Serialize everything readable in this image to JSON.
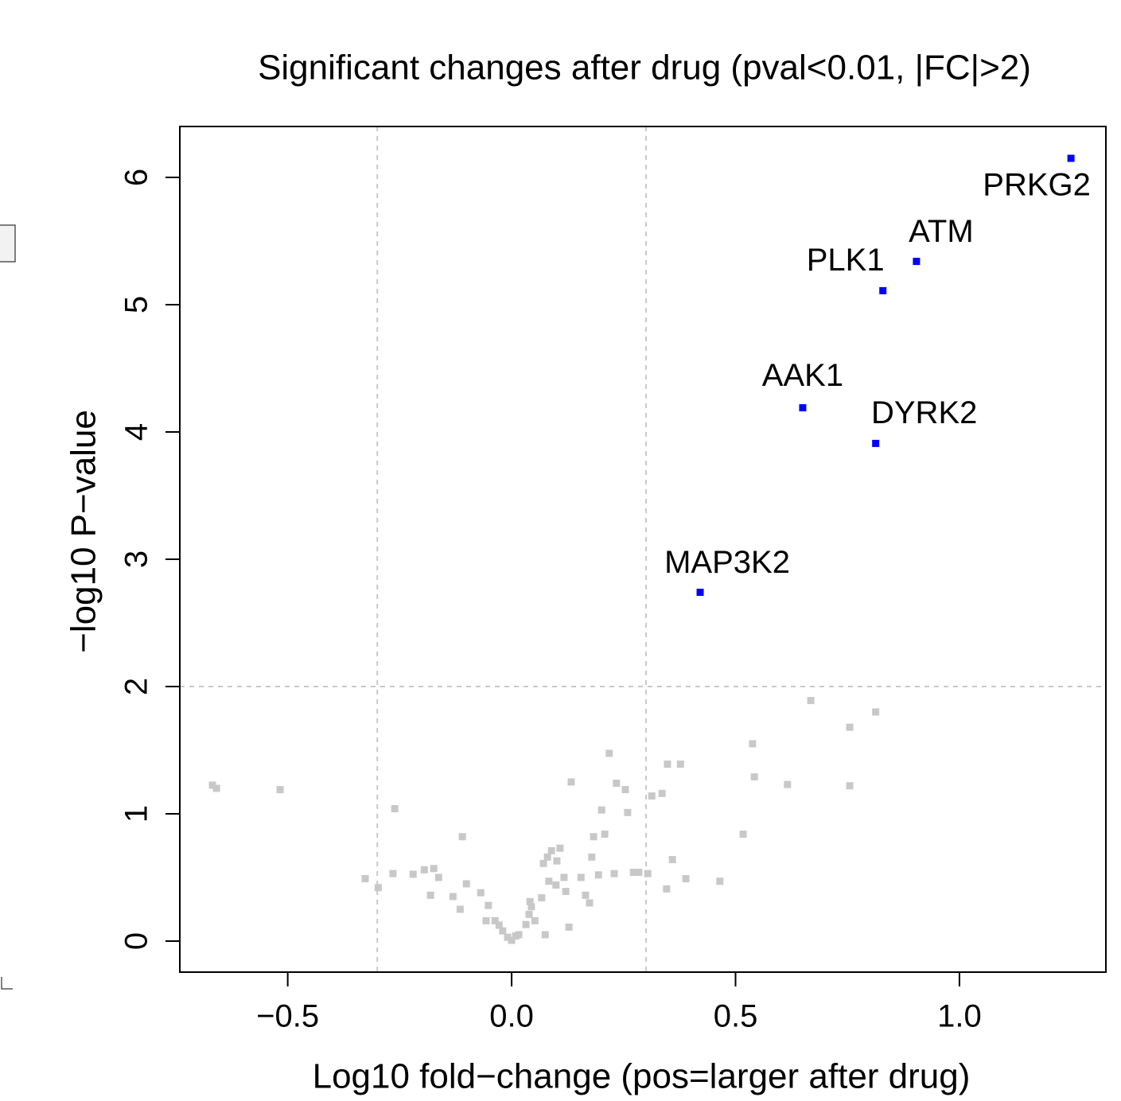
{
  "chart_data": {
    "type": "scatter",
    "title": "Significant changes after drug (pval<0.01, |FC|>2)",
    "xlabel": "Log10 fold−change (pos=larger after drug)",
    "ylabel": "−log10 P−value",
    "xlim": [
      -0.741,
      1.327
    ],
    "ylim": [
      -0.244,
      6.4
    ],
    "xticks": [
      {
        "value": -0.5,
        "label": "−0.5"
      },
      {
        "value": 0,
        "label": "0.0"
      },
      {
        "value": 0.5,
        "label": "0.5"
      },
      {
        "value": 1,
        "label": "1.0"
      }
    ],
    "yticks": [
      0,
      1,
      2,
      3,
      4,
      5,
      6
    ],
    "vlines": [
      -0.3,
      0.3
    ],
    "hlines": [
      2
    ],
    "series": [
      {
        "color": "#c8c8c8",
        "x": [
          -0.668,
          -0.659,
          -0.517,
          -0.327,
          -0.298,
          -0.261,
          -0.265,
          -0.22,
          -0.195,
          -0.174,
          -0.163,
          -0.181,
          -0.131,
          -0.115,
          -0.11,
          -0.101,
          -0.069,
          -0.057,
          -0.052,
          -0.037,
          -0.028,
          -0.02,
          -0.009,
          0,
          0.009,
          0.016,
          0.032,
          0.039,
          0.044,
          0.052,
          0.041,
          0.067,
          0.075,
          0.071,
          0.08,
          0.089,
          0.101,
          0.108,
          0.083,
          0.099,
          0.117,
          0.121,
          0.128,
          0.133,
          0.155,
          0.165,
          0.174,
          0.179,
          0.183,
          0.194,
          0.201,
          0.208,
          0.218,
          0.229,
          0.234,
          0.254,
          0.259,
          0.272,
          0.284,
          0.304,
          0.313,
          0.336,
          0.348,
          0.377,
          0.346,
          0.359,
          0.389,
          0.465,
          0.517,
          0.538,
          0.542,
          0.616,
          0.668,
          0.755,
          0.755,
          0.813
        ],
        "values": [
          1.225,
          1.2,
          1.19,
          0.49,
          0.42,
          1.04,
          0.53,
          0.525,
          0.56,
          0.57,
          0.5,
          0.36,
          0.35,
          0.25,
          0.82,
          0.45,
          0.38,
          0.16,
          0.28,
          0.16,
          0.125,
          0.08,
          0.03,
          0.006,
          0.04,
          0.05,
          0.13,
          0.21,
          0.27,
          0.16,
          0.31,
          0.34,
          0.05,
          0.61,
          0.66,
          0.71,
          0.63,
          0.73,
          0.47,
          0.44,
          0.5,
          0.39,
          0.11,
          1.25,
          0.5,
          0.36,
          0.3,
          0.66,
          0.82,
          0.52,
          1.03,
          0.84,
          1.475,
          0.53,
          1.24,
          1.19,
          1.01,
          0.54,
          0.54,
          0.53,
          1.14,
          1.16,
          1.39,
          1.39,
          0.41,
          0.64,
          0.49,
          0.47,
          0.84,
          1.55,
          1.29,
          1.23,
          1.89,
          1.68,
          1.22,
          1.8
        ]
      },
      {
        "color": "#0000ff",
        "x": [
          1.249,
          0.904,
          0.829,
          0.65,
          0.813,
          0.421
        ],
        "values": [
          6.15,
          5.34,
          5.11,
          4.19,
          3.91,
          2.74
        ],
        "labels": [
          "PRKG2",
          "ATM",
          "PLK1",
          "AAK1",
          "DYRK2",
          "MAP3K2"
        ]
      }
    ]
  }
}
